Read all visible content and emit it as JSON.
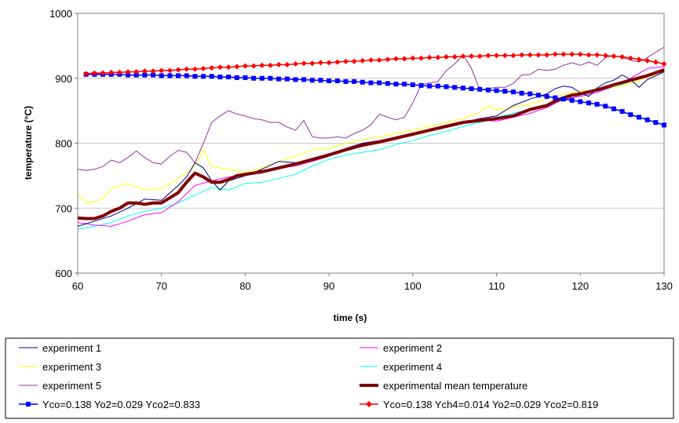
{
  "chart_data": {
    "type": "line",
    "xlabel": "time (s)",
    "ylabel": "temperature (°C)",
    "xlim": [
      60,
      130
    ],
    "ylim": [
      600,
      1000
    ],
    "x_ticks": [
      "60",
      "70",
      "80",
      "90",
      "100",
      "110",
      "120",
      "130"
    ],
    "y_ticks": [
      "600",
      "700",
      "800",
      "900",
      "1000"
    ],
    "grid": "horizontal",
    "legend_position": "bottom",
    "series": [
      {
        "name": "experiment 1",
        "color": "#000080",
        "style": "thin",
        "x": [
          60,
          62,
          64,
          66,
          68,
          70,
          72,
          73,
          74,
          75,
          76,
          77,
          78,
          80,
          82,
          84,
          86,
          88,
          90,
          92,
          94,
          96,
          98,
          100,
          102,
          104,
          106,
          108,
          110,
          112,
          114,
          116,
          117,
          118,
          119,
          120,
          121,
          122,
          123,
          124,
          125,
          126,
          127,
          128,
          130
        ],
        "y": [
          672,
          680,
          688,
          700,
          714,
          712,
          735,
          748,
          770,
          762,
          742,
          728,
          742,
          750,
          760,
          772,
          770,
          775,
          782,
          792,
          800,
          804,
          808,
          812,
          820,
          825,
          832,
          838,
          842,
          858,
          868,
          876,
          884,
          888,
          886,
          878,
          872,
          885,
          893,
          897,
          905,
          898,
          886,
          898,
          910
        ]
      },
      {
        "name": "experiment 2",
        "color": "#ff00ff",
        "style": "thin",
        "x": [
          60,
          62,
          64,
          66,
          68,
          70,
          72,
          74,
          76,
          78,
          80,
          82,
          84,
          86,
          88,
          90,
          92,
          94,
          96,
          98,
          100,
          102,
          104,
          106,
          108,
          110,
          112,
          114,
          116,
          118,
          120,
          122,
          124,
          126,
          128,
          130
        ],
        "y": [
          678,
          674,
          672,
          680,
          690,
          693,
          710,
          735,
          742,
          748,
          752,
          758,
          762,
          765,
          772,
          780,
          790,
          796,
          800,
          806,
          812,
          822,
          828,
          830,
          836,
          834,
          840,
          846,
          855,
          868,
          872,
          878,
          888,
          900,
          915,
          918
        ]
      },
      {
        "name": "experiment 3",
        "color": "#ffff00",
        "style": "thin",
        "x": [
          60,
          61,
          62,
          63,
          64,
          65,
          66,
          67,
          68,
          70,
          72,
          74,
          75,
          76,
          78,
          80,
          82,
          84,
          86,
          88,
          90,
          92,
          94,
          96,
          98,
          100,
          102,
          104,
          106,
          108,
          109,
          110,
          112,
          114,
          116,
          118,
          120,
          122,
          124,
          126,
          128,
          130
        ],
        "y": [
          722,
          708,
          710,
          715,
          730,
          734,
          738,
          732,
          728,
          730,
          745,
          765,
          790,
          764,
          760,
          755,
          762,
          772,
          780,
          790,
          792,
          800,
          805,
          810,
          815,
          820,
          826,
          832,
          838,
          848,
          858,
          852,
          855,
          860,
          868,
          875,
          880,
          882,
          886,
          892,
          902,
          908
        ]
      },
      {
        "name": "experiment 4",
        "color": "#00ffff",
        "style": "thin",
        "x": [
          60,
          62,
          64,
          66,
          68,
          70,
          72,
          74,
          76,
          78,
          80,
          82,
          84,
          86,
          88,
          90,
          92,
          94,
          96,
          98,
          100,
          102,
          104,
          106,
          108,
          110,
          112,
          114,
          116,
          118,
          120,
          122,
          124,
          126,
          128,
          130
        ],
        "y": [
          668,
          672,
          678,
          688,
          695,
          700,
          708,
          720,
          732,
          728,
          738,
          740,
          746,
          752,
          765,
          775,
          782,
          786,
          790,
          798,
          804,
          812,
          818,
          826,
          832,
          840,
          846,
          852,
          860,
          866,
          874,
          880,
          886,
          895,
          905,
          910
        ]
      },
      {
        "name": "experiment 5",
        "color": "#993399",
        "style": "thin",
        "x": [
          60,
          61,
          62,
          63,
          64,
          65,
          66,
          67,
          68,
          69,
          70,
          71,
          72,
          73,
          74,
          75,
          76,
          77,
          78,
          79,
          80,
          81,
          82,
          83,
          84,
          85,
          86,
          87,
          88,
          89,
          90,
          91,
          92,
          93,
          94,
          95,
          96,
          97,
          98,
          99,
          100,
          101,
          102,
          103,
          104,
          105,
          106,
          107,
          108,
          109,
          110,
          111,
          112,
          113,
          114,
          115,
          116,
          117,
          118,
          119,
          120,
          121,
          122,
          123,
          124,
          125,
          126,
          127,
          128,
          129,
          130
        ],
        "y": [
          760,
          758,
          760,
          764,
          774,
          770,
          778,
          788,
          778,
          770,
          768,
          780,
          789,
          786,
          770,
          800,
          832,
          842,
          850,
          845,
          842,
          838,
          836,
          832,
          832,
          825,
          820,
          835,
          810,
          808,
          808,
          810,
          808,
          815,
          820,
          828,
          845,
          840,
          836,
          840,
          862,
          890,
          893,
          895,
          912,
          922,
          936,
          915,
          882,
          884,
          886,
          886,
          892,
          905,
          906,
          914,
          912,
          914,
          920,
          924,
          920,
          925,
          920,
          932,
          935,
          932,
          928,
          925,
          932,
          940,
          948
        ]
      },
      {
        "name": "experimental mean temperature",
        "color": "#7f0000",
        "style": "thick",
        "x": [
          60,
          61,
          62,
          63,
          64,
          65,
          66,
          67,
          68,
          69,
          70,
          71,
          72,
          73,
          74,
          75,
          76,
          77,
          78,
          79,
          80,
          82,
          84,
          86,
          88,
          90,
          92,
          94,
          96,
          98,
          100,
          102,
          104,
          106,
          108,
          110,
          112,
          114,
          116,
          117,
          118,
          119,
          120,
          122,
          124,
          126,
          128,
          130
        ],
        "y": [
          685,
          684,
          684,
          688,
          695,
          700,
          708,
          708,
          706,
          708,
          708,
          716,
          724,
          740,
          754,
          748,
          740,
          740,
          744,
          750,
          752,
          756,
          762,
          768,
          775,
          782,
          790,
          797,
          802,
          808,
          814,
          820,
          826,
          832,
          835,
          838,
          842,
          852,
          858,
          865,
          870,
          874,
          876,
          882,
          890,
          897,
          904,
          913
        ]
      },
      {
        "name": "Yco=0.138 Yo2=0.029 Yco2=0.833",
        "color": "#0000ff",
        "style": "square-markers",
        "x": [
          61,
          62,
          63,
          64,
          65,
          66,
          67,
          68,
          69,
          70,
          71,
          72,
          73,
          74,
          75,
          76,
          77,
          78,
          79,
          80,
          81,
          82,
          83,
          84,
          85,
          86,
          87,
          88,
          89,
          90,
          91,
          92,
          93,
          94,
          95,
          96,
          97,
          98,
          99,
          100,
          101,
          102,
          103,
          104,
          105,
          106,
          107,
          108,
          109,
          110,
          111,
          112,
          113,
          114,
          115,
          116,
          117,
          118,
          119,
          120,
          121,
          122,
          123,
          124,
          125,
          126,
          127,
          128,
          129,
          130
        ],
        "y": [
          906,
          906,
          906,
          906,
          906,
          905,
          905,
          905,
          905,
          904,
          904,
          904,
          904,
          903,
          903,
          903,
          902,
          902,
          901,
          901,
          900,
          900,
          900,
          899,
          899,
          898,
          898,
          897,
          897,
          896,
          896,
          895,
          895,
          894,
          893,
          893,
          892,
          891,
          891,
          890,
          889,
          888,
          888,
          887,
          886,
          885,
          884,
          883,
          882,
          881,
          880,
          879,
          877,
          876,
          874,
          872,
          870,
          868,
          866,
          864,
          862,
          860,
          857,
          853,
          849,
          844,
          840,
          836,
          832,
          828
        ]
      },
      {
        "name": "Yco=0.138 Ych4=0.014 Yo2=0.029 Yco2=0.819",
        "color": "#ff0000",
        "style": "diamond-markers",
        "x": [
          61,
          62,
          63,
          64,
          65,
          66,
          67,
          68,
          69,
          70,
          71,
          72,
          73,
          74,
          75,
          76,
          77,
          78,
          79,
          80,
          81,
          82,
          83,
          84,
          85,
          86,
          87,
          88,
          89,
          90,
          91,
          92,
          93,
          94,
          95,
          96,
          97,
          98,
          99,
          100,
          101,
          102,
          103,
          104,
          105,
          106,
          107,
          108,
          109,
          110,
          111,
          112,
          113,
          114,
          115,
          116,
          117,
          118,
          119,
          120,
          121,
          122,
          123,
          124,
          125,
          126,
          127,
          128,
          129,
          130
        ],
        "y": [
          907,
          908,
          908,
          909,
          909,
          910,
          910,
          911,
          911,
          912,
          912,
          913,
          914,
          914,
          915,
          916,
          917,
          917,
          918,
          919,
          919,
          920,
          920,
          921,
          921,
          922,
          923,
          923,
          924,
          924,
          925,
          926,
          926,
          927,
          928,
          928,
          929,
          930,
          930,
          931,
          931,
          932,
          932,
          933,
          933,
          934,
          934,
          934,
          935,
          935,
          935,
          935,
          936,
          936,
          936,
          936,
          937,
          937,
          937,
          937,
          936,
          936,
          935,
          934,
          933,
          931,
          929,
          927,
          925,
          922
        ]
      }
    ]
  }
}
